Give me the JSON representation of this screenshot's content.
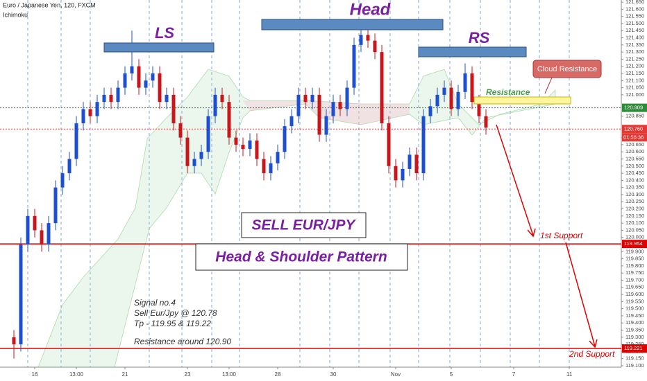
{
  "chart_data": {
    "type": "candlestick",
    "title": "Euro / Japanese Yen, 120, FXCM",
    "indicator": "Ichimoku",
    "up_color": "#1e4fd0",
    "down_color": "#c8161d",
    "categories": [
      null,
      null,
      null,
      "16",
      null,
      null,
      null,
      null,
      null,
      "13:00",
      null,
      null,
      null,
      null,
      null,
      null,
      "21",
      null,
      null,
      null,
      null,
      null,
      null,
      null,
      null,
      "23",
      null,
      null,
      null,
      null,
      null,
      "13:00",
      null,
      null,
      null,
      null,
      null,
      null,
      "28",
      null,
      null,
      null,
      null,
      null,
      null,
      null,
      "30",
      null,
      null,
      null,
      null,
      null,
      null,
      null,
      null,
      "Nov",
      null,
      null,
      null,
      null,
      null,
      null,
      null,
      "5",
      null,
      null,
      null,
      null,
      null,
      null,
      null,
      null,
      "7",
      null,
      null,
      null,
      null,
      null,
      null,
      null,
      "11"
    ],
    "open": [
      119.3,
      119.25,
      119.95,
      120.15,
      120.05,
      119.95,
      120.1,
      120.35,
      120.45,
      120.55,
      120.8,
      120.9,
      120.85,
      120.95,
      121.0,
      120.95,
      121.05,
      121.15,
      121.2,
      121.05,
      121.1,
      121.15,
      120.95,
      121.0,
      120.8,
      120.7,
      120.5,
      120.55,
      120.6,
      120.85,
      121.0,
      120.95,
      120.7,
      120.65,
      120.62,
      120.68,
      120.55,
      120.45,
      120.52,
      120.6,
      120.78,
      120.85,
      121.0,
      120.95,
      121.0,
      120.72,
      120.85,
      120.95,
      120.9,
      121.05,
      121.35,
      121.42,
      121.38,
      121.3,
      120.8,
      120.5,
      120.4,
      120.48,
      120.58,
      120.45,
      120.85,
      120.92,
      121.0,
      121.05,
      120.9,
      121.02,
      121.15,
      120.95,
      120.85,
      null,
      null,
      null,
      null,
      null,
      null,
      null,
      null,
      null,
      null,
      null,
      null
    ],
    "high": [
      119.35,
      120.0,
      120.2,
      120.2,
      120.1,
      120.15,
      120.4,
      120.5,
      120.6,
      120.85,
      120.95,
      120.95,
      121.0,
      121.05,
      121.05,
      121.1,
      121.2,
      121.45,
      121.25,
      121.15,
      121.2,
      121.2,
      121.05,
      121.05,
      120.85,
      120.75,
      120.6,
      120.65,
      120.9,
      121.05,
      121.05,
      121.0,
      120.75,
      120.7,
      120.73,
      120.73,
      120.6,
      120.57,
      120.65,
      120.83,
      120.9,
      121.05,
      121.05,
      121.05,
      121.05,
      120.9,
      121.0,
      121.0,
      121.1,
      121.4,
      121.47,
      121.47,
      121.43,
      121.35,
      120.85,
      120.55,
      120.53,
      120.63,
      120.63,
      120.9,
      120.97,
      121.05,
      121.1,
      121.1,
      121.07,
      121.22,
      121.2,
      121.0,
      120.9,
      null,
      null,
      null,
      null,
      null,
      null,
      null,
      null,
      null,
      null,
      null,
      null
    ],
    "low": [
      119.15,
      119.2,
      119.9,
      120.0,
      119.9,
      119.9,
      120.05,
      120.3,
      120.4,
      120.5,
      120.75,
      120.8,
      120.8,
      120.9,
      120.9,
      120.9,
      121.0,
      121.1,
      121.0,
      121.0,
      121.05,
      120.9,
      120.9,
      120.75,
      120.65,
      120.45,
      120.45,
      120.5,
      120.55,
      120.8,
      120.9,
      120.65,
      120.6,
      120.57,
      120.57,
      120.5,
      120.4,
      120.4,
      120.47,
      120.55,
      120.73,
      120.8,
      120.9,
      120.9,
      120.67,
      120.67,
      120.8,
      120.85,
      120.85,
      121.0,
      121.3,
      121.33,
      121.25,
      120.75,
      120.45,
      120.35,
      120.35,
      120.43,
      120.4,
      120.4,
      120.8,
      120.87,
      120.95,
      120.85,
      120.85,
      120.97,
      120.9,
      120.8,
      120.72,
      null,
      null,
      null,
      null,
      null,
      null,
      null,
      null,
      null,
      null,
      null,
      null
    ],
    "close": [
      119.25,
      119.95,
      120.15,
      120.05,
      119.95,
      120.1,
      120.35,
      120.45,
      120.55,
      120.8,
      120.9,
      120.85,
      120.95,
      121.0,
      120.95,
      121.05,
      121.15,
      121.2,
      121.05,
      121.1,
      121.15,
      120.95,
      121.0,
      120.8,
      120.7,
      120.5,
      120.55,
      120.6,
      120.85,
      121.0,
      120.95,
      120.7,
      120.65,
      120.62,
      120.68,
      120.55,
      120.45,
      120.52,
      120.6,
      120.78,
      120.85,
      121.0,
      120.95,
      121.0,
      120.72,
      120.85,
      120.95,
      120.9,
      121.05,
      121.35,
      121.42,
      121.38,
      121.3,
      120.8,
      120.5,
      120.4,
      120.48,
      120.58,
      120.45,
      120.85,
      120.92,
      121.0,
      121.05,
      120.9,
      121.02,
      121.15,
      120.95,
      120.85,
      120.77,
      null,
      null,
      null,
      null,
      null,
      null,
      null,
      null,
      null,
      null,
      null,
      null
    ],
    "ylim": [
      119.09,
      121.665
    ],
    "yticks": [
      {
        "value": 119.1,
        "label": "119.100"
      },
      {
        "value": 119.15,
        "label": "119.150"
      },
      {
        "value": 119.2,
        "label": "119.200"
      },
      {
        "value": 119.25,
        "label": "119.250"
      },
      {
        "value": 119.3,
        "label": "119.300"
      },
      {
        "value": 119.35,
        "label": "119.350"
      },
      {
        "value": 119.4,
        "label": "119.400"
      },
      {
        "value": 119.45,
        "label": "119.450"
      },
      {
        "value": 119.5,
        "label": "119.500"
      },
      {
        "value": 119.55,
        "label": "119.550"
      },
      {
        "value": 119.6,
        "label": "119.600"
      },
      {
        "value": 119.65,
        "label": "119.650"
      },
      {
        "value": 119.7,
        "label": "119.700"
      },
      {
        "value": 119.75,
        "label": "119.750"
      },
      {
        "value": 119.8,
        "label": "119.800"
      },
      {
        "value": 119.85,
        "label": "119.850"
      },
      {
        "value": 119.9,
        "label": "119.900"
      },
      {
        "value": 120.0,
        "label": "120.000"
      },
      {
        "value": 120.05,
        "label": "120.050"
      },
      {
        "value": 120.1,
        "label": "120.100"
      },
      {
        "value": 120.15,
        "label": "120.150"
      },
      {
        "value": 120.2,
        "label": "120.200"
      },
      {
        "value": 120.25,
        "label": "120.250"
      },
      {
        "value": 120.3,
        "label": "120.300"
      },
      {
        "value": 120.35,
        "label": "120.350"
      },
      {
        "value": 120.4,
        "label": "120.400"
      },
      {
        "value": 120.45,
        "label": "120.450"
      },
      {
        "value": 120.5,
        "label": "120.500"
      },
      {
        "value": 120.55,
        "label": "120.550"
      },
      {
        "value": 120.6,
        "label": "120.600"
      },
      {
        "value": 120.65,
        "label": "120.650"
      },
      {
        "value": 120.7,
        "label": "120.700"
      },
      {
        "value": 120.85,
        "label": "120.850"
      },
      {
        "value": 121.0,
        "label": "121.000"
      },
      {
        "value": 121.05,
        "label": "121.050"
      },
      {
        "value": 121.1,
        "label": "121.100"
      },
      {
        "value": 121.15,
        "label": "121.150"
      },
      {
        "value": 121.2,
        "label": "121.200"
      },
      {
        "value": 121.25,
        "label": "121.250"
      },
      {
        "value": 121.3,
        "label": "121.300"
      },
      {
        "value": 121.35,
        "label": "121.350"
      },
      {
        "value": 121.4,
        "label": "121.400"
      },
      {
        "value": 121.45,
        "label": "121.450"
      },
      {
        "value": 121.5,
        "label": "121.500"
      },
      {
        "value": 121.55,
        "label": "121.550"
      },
      {
        "value": 121.6,
        "label": "121.600"
      },
      {
        "value": 121.65,
        "label": "121.650"
      }
    ],
    "levels": [
      {
        "value": 120.909,
        "label": "120.909",
        "color": "#2e8b3a",
        "style": "dotted"
      },
      {
        "value": 120.76,
        "label": "120.760",
        "color": "#e53935",
        "style": "dotted"
      },
      {
        "value": 119.954,
        "label": "119.954",
        "color": "#e00000",
        "style": "solid"
      },
      {
        "value": 119.221,
        "label": "119.221",
        "color": "#e00000",
        "style": "solid"
      }
    ],
    "countdown": "01:56:36",
    "annotations": {
      "ls": "LS",
      "head": "Head",
      "rs": "RS",
      "cloud_resistance": "Cloud Resistance",
      "resistance": "Resistance",
      "sell": "SELL EUR/JPY",
      "pattern": "Head & Shoulder Pattern",
      "support1": "1st Support",
      "support2": "2nd Support",
      "signal": [
        "Signal no.4",
        "Sell Eur/Jpy @ 120.78",
        "Tp - 119.95 & 119.22",
        "Resistance around 120.90"
      ]
    }
  }
}
